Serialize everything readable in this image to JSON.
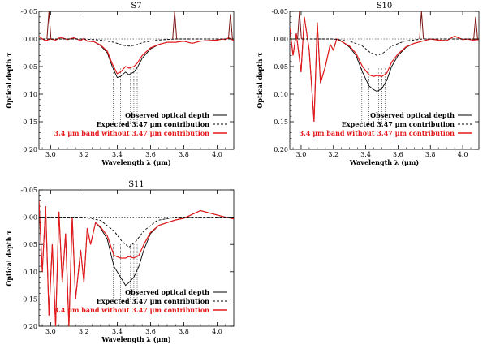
{
  "chart_data": [
    {
      "type": "line",
      "title": "S7",
      "xlabel": "Wavelength λ (μm)",
      "ylabel": "Optical depth τ",
      "xlim": [
        2.93,
        4.1
      ],
      "ylim": [
        0.2,
        -0.05
      ],
      "y_inverted": true,
      "xticks": [
        "3.0",
        "3.2",
        "3.4",
        "3.6",
        "3.8",
        "4.0"
      ],
      "yticks": [
        "-0.05",
        "0.00",
        "0.05",
        "0.10",
        "0.15",
        "0.20"
      ],
      "legend_position": "lower-right",
      "series": [
        {
          "name": "Observed optical depth",
          "color": "#000000",
          "style": "solid",
          "x": [
            2.93,
            2.95,
            2.97,
            3.0,
            3.03,
            3.06,
            3.1,
            3.14,
            3.18,
            3.2,
            3.22,
            3.26,
            3.3,
            3.34,
            3.37,
            3.4,
            3.42,
            3.45,
            3.47,
            3.5,
            3.52,
            3.55,
            3.6,
            3.65,
            3.7,
            3.75,
            3.8,
            3.85,
            3.9,
            3.95,
            4.0,
            4.03,
            4.05,
            4.07,
            4.1
          ],
          "y": [
            -0.005,
            0.0,
            0.003,
            0.0,
            0.002,
            -0.003,
            0.001,
            -0.002,
            0.003,
            -0.001,
            0.004,
            0.005,
            0.012,
            0.025,
            0.05,
            0.07,
            0.068,
            0.06,
            0.065,
            0.06,
            0.052,
            0.035,
            0.018,
            0.01,
            0.006,
            0.006,
            0.004,
            0.008,
            0.004,
            0.003,
            0.002,
            0.0,
            0.001,
            -0.002,
            0.003
          ]
        },
        {
          "name": "Expected 3.47 μm contribution",
          "color": "#000000",
          "style": "dashed",
          "x": [
            2.93,
            3.2,
            3.3,
            3.38,
            3.43,
            3.47,
            3.51,
            3.56,
            3.64,
            3.75,
            4.1
          ],
          "y": [
            0.0,
            0.0,
            0.002,
            0.006,
            0.011,
            0.013,
            0.011,
            0.006,
            0.002,
            0.0,
            0.0
          ]
        },
        {
          "name": "3.4 μm band without 3.47 μm contribution",
          "color": "#e41a1c",
          "style": "solid",
          "x": [
            2.93,
            2.95,
            2.97,
            3.0,
            3.03,
            3.06,
            3.1,
            3.14,
            3.18,
            3.2,
            3.22,
            3.26,
            3.3,
            3.34,
            3.37,
            3.4,
            3.42,
            3.45,
            3.47,
            3.5,
            3.52,
            3.55,
            3.6,
            3.65,
            3.7,
            3.75,
            3.8,
            3.85,
            3.9,
            3.95,
            4.0,
            4.03,
            4.05,
            4.07,
            4.1
          ],
          "y": [
            -0.005,
            0.0,
            0.003,
            0.0,
            0.002,
            -0.003,
            0.001,
            -0.002,
            0.003,
            -0.001,
            0.004,
            0.005,
            0.011,
            0.022,
            0.045,
            0.063,
            0.06,
            0.05,
            0.053,
            0.05,
            0.044,
            0.03,
            0.016,
            0.01,
            0.006,
            0.006,
            0.004,
            0.008,
            0.004,
            0.003,
            0.002,
            0.0,
            0.001,
            -0.002,
            0.003
          ]
        }
      ],
      "spikes": [
        {
          "x": 2.99,
          "y": -0.05
        },
        {
          "x": 3.745,
          "y": -0.05
        },
        {
          "x": 4.08,
          "y": -0.045
        }
      ],
      "vlines_x": [
        3.376,
        3.42,
        3.48,
        3.5,
        3.52
      ],
      "vline_ylim": [
        0.05,
        0.2
      ]
    },
    {
      "type": "line",
      "title": "S10",
      "xlabel": "Wavelength λ (μm)",
      "ylabel": "Optical depth τ",
      "xlim": [
        2.93,
        4.1
      ],
      "ylim": [
        0.2,
        -0.05
      ],
      "y_inverted": true,
      "xticks": [
        "3.0",
        "3.2",
        "3.4",
        "3.6",
        "3.8",
        "4.0"
      ],
      "yticks": [
        "-0.05",
        "0.00",
        "0.05",
        "0.10",
        "0.15",
        "0.20"
      ],
      "legend_position": "lower-right",
      "series": [
        {
          "name": "Observed optical depth",
          "color": "#000000",
          "style": "solid",
          "x": [
            2.93,
            2.95,
            2.97,
            3.0,
            3.02,
            3.05,
            3.08,
            3.1,
            3.12,
            3.15,
            3.18,
            3.2,
            3.22,
            3.26,
            3.3,
            3.34,
            3.38,
            3.42,
            3.45,
            3.47,
            3.5,
            3.53,
            3.56,
            3.6,
            3.65,
            3.7,
            3.75,
            3.8,
            3.85,
            3.9,
            3.95,
            4.0,
            4.03,
            4.06,
            4.1
          ],
          "y": [
            -0.02,
            0.03,
            -0.01,
            0.06,
            -0.04,
            0.02,
            0.15,
            -0.03,
            0.08,
            0.05,
            0.01,
            0.02,
            0.0,
            0.006,
            0.015,
            0.03,
            0.06,
            0.085,
            0.092,
            0.095,
            0.09,
            0.075,
            0.05,
            0.03,
            0.015,
            0.008,
            0.004,
            0.0,
            0.002,
            0.003,
            -0.005,
            0.001,
            0.0,
            0.002,
            0.001
          ]
        },
        {
          "name": "Expected 3.47 μm contribution",
          "color": "#000000",
          "style": "dashed",
          "x": [
            2.93,
            3.2,
            3.3,
            3.38,
            3.43,
            3.47,
            3.51,
            3.56,
            3.64,
            3.75,
            4.1
          ],
          "y": [
            0.0,
            0.0,
            0.004,
            0.013,
            0.025,
            0.03,
            0.025,
            0.013,
            0.004,
            0.0,
            0.0
          ]
        },
        {
          "name": "3.4 μm band without 3.47 μm contribution",
          "color": "#e41a1c",
          "style": "solid",
          "x": [
            2.93,
            2.95,
            2.97,
            3.0,
            3.02,
            3.05,
            3.08,
            3.1,
            3.12,
            3.15,
            3.18,
            3.2,
            3.22,
            3.26,
            3.3,
            3.34,
            3.38,
            3.42,
            3.45,
            3.47,
            3.5,
            3.53,
            3.56,
            3.6,
            3.65,
            3.7,
            3.75,
            3.8,
            3.85,
            3.9,
            3.95,
            4.0,
            4.03,
            4.06,
            4.1
          ],
          "y": [
            -0.02,
            0.03,
            -0.01,
            0.06,
            -0.04,
            0.02,
            0.15,
            -0.03,
            0.08,
            0.05,
            0.01,
            0.02,
            0.0,
            0.006,
            0.013,
            0.026,
            0.05,
            0.065,
            0.068,
            0.066,
            0.068,
            0.062,
            0.042,
            0.027,
            0.014,
            0.008,
            0.004,
            0.0,
            0.002,
            0.003,
            -0.005,
            0.001,
            0.0,
            0.002,
            0.001
          ]
        }
      ],
      "spikes": [
        {
          "x": 2.99,
          "y": -0.05
        },
        {
          "x": 3.745,
          "y": -0.05
        },
        {
          "x": 4.08,
          "y": -0.04
        }
      ],
      "vlines_x": [
        3.376,
        3.42,
        3.48,
        3.5,
        3.52
      ],
      "vline_ylim": [
        0.05,
        0.2
      ]
    },
    {
      "type": "line",
      "title": "S11",
      "xlabel": "Wavelength λ (μm)",
      "ylabel": "Optical depth τ",
      "xlim": [
        2.93,
        4.1
      ],
      "ylim": [
        0.2,
        -0.05
      ],
      "y_inverted": true,
      "xticks": [
        "3.0",
        "3.2",
        "3.4",
        "3.6",
        "3.8",
        "4.0"
      ],
      "yticks": [
        "-0.05",
        "0.00",
        "0.05",
        "0.10",
        "0.15",
        "0.20"
      ],
      "legend_position": "lower-right",
      "series": [
        {
          "name": "Observed optical depth",
          "color": "#000000",
          "style": "solid",
          "x": [
            2.93,
            2.95,
            2.97,
            2.99,
            3.01,
            3.03,
            3.05,
            3.07,
            3.09,
            3.11,
            3.13,
            3.15,
            3.18,
            3.2,
            3.22,
            3.24,
            3.27,
            3.3,
            3.34,
            3.38,
            3.42,
            3.45,
            3.47,
            3.5,
            3.53,
            3.56,
            3.6,
            3.65,
            3.7,
            3.75,
            3.8,
            3.85,
            3.9,
            3.95,
            4.0,
            4.05,
            4.1
          ],
          "y": [
            -0.03,
            0.1,
            -0.02,
            0.18,
            0.05,
            0.2,
            -0.01,
            0.12,
            0.03,
            0.2,
            0.0,
            0.15,
            0.06,
            0.12,
            0.02,
            0.05,
            0.01,
            0.02,
            0.04,
            0.09,
            0.11,
            0.125,
            0.12,
            0.11,
            0.09,
            0.06,
            0.03,
            0.015,
            0.01,
            0.005,
            0.002,
            -0.005,
            -0.012,
            -0.008,
            -0.004,
            0.0,
            0.003
          ]
        },
        {
          "name": "Expected 3.47 μm contribution",
          "color": "#000000",
          "style": "dashed",
          "x": [
            2.93,
            3.2,
            3.3,
            3.38,
            3.43,
            3.47,
            3.51,
            3.56,
            3.64,
            3.75,
            4.1
          ],
          "y": [
            0.0,
            0.0,
            0.006,
            0.025,
            0.045,
            0.055,
            0.045,
            0.025,
            0.006,
            0.0,
            0.0
          ]
        },
        {
          "name": "3.4 μm band without 3.47 μm contribution",
          "color": "#e41a1c",
          "style": "solid",
          "x": [
            2.93,
            2.95,
            2.97,
            2.99,
            3.01,
            3.03,
            3.05,
            3.07,
            3.09,
            3.11,
            3.13,
            3.15,
            3.18,
            3.2,
            3.22,
            3.24,
            3.27,
            3.3,
            3.34,
            3.38,
            3.42,
            3.45,
            3.47,
            3.5,
            3.53,
            3.56,
            3.6,
            3.65,
            3.7,
            3.75,
            3.8,
            3.85,
            3.9,
            3.95,
            4.0,
            4.05,
            4.1
          ],
          "y": [
            -0.03,
            0.1,
            -0.02,
            0.18,
            0.05,
            0.2,
            -0.01,
            0.12,
            0.03,
            0.2,
            0.0,
            0.15,
            0.06,
            0.12,
            0.02,
            0.05,
            0.01,
            0.018,
            0.034,
            0.07,
            0.075,
            0.075,
            0.072,
            0.075,
            0.07,
            0.05,
            0.028,
            0.015,
            0.01,
            0.005,
            0.002,
            -0.005,
            -0.012,
            -0.008,
            -0.004,
            0.0,
            0.003
          ]
        }
      ],
      "spikes": [],
      "vlines_x": [
        3.376,
        3.42,
        3.48,
        3.5,
        3.52
      ],
      "vline_ylim": [
        0.05,
        0.2
      ]
    }
  ]
}
